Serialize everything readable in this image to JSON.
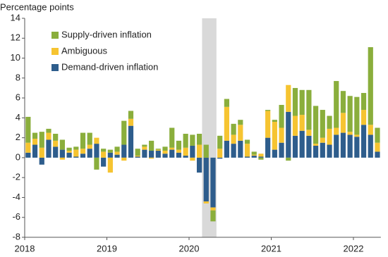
{
  "chart_data": {
    "type": "stacked_bar",
    "ylabel": "Percentage points",
    "categories": [
      "2018",
      null,
      null,
      null,
      null,
      null,
      null,
      null,
      null,
      null,
      null,
      null,
      "2019",
      null,
      null,
      null,
      null,
      null,
      null,
      null,
      null,
      null,
      null,
      null,
      "2020",
      null,
      null,
      null,
      null,
      null,
      null,
      null,
      null,
      null,
      null,
      null,
      "2021",
      null,
      null,
      null,
      null,
      null,
      null,
      null,
      null,
      null,
      null,
      null,
      "2022",
      null,
      null,
      null
    ],
    "series": [
      {
        "name": "Demand-driven inflation",
        "color": "#2e5d8c",
        "values": [
          0.5,
          1.3,
          -0.7,
          1.8,
          1.1,
          0.8,
          0.5,
          0.1,
          0.4,
          0.9,
          1.4,
          -0.9,
          0.5,
          0.3,
          1.3,
          3.2,
          0.1,
          0.8,
          0.7,
          0.7,
          0.4,
          0.8,
          0.5,
          0.2,
          1.2,
          -1.5,
          -4.4,
          -5.0,
          -0.1,
          1.7,
          1.4,
          1.7,
          0.1,
          0.2,
          0.1,
          2.0,
          0.8,
          1.5,
          4.6,
          2.2,
          2.7,
          2.2,
          1.2,
          1.5,
          1.3,
          2.3,
          2.5,
          2.3,
          2.1,
          3.3,
          2.3,
          0.6
        ]
      },
      {
        "name": "Ambiguous",
        "color": "#f6c431",
        "values": [
          1.0,
          0.6,
          1.0,
          0.7,
          0.6,
          -0.2,
          0.2,
          0.7,
          0.5,
          0.4,
          0.6,
          0.6,
          -1.5,
          0.3,
          -0.3,
          0.7,
          0.1,
          0.3,
          -0.1,
          0.1,
          0.3,
          0.2,
          0.3,
          0.8,
          -0.3,
          1.3,
          -0.2,
          -0.3,
          0.9,
          3.4,
          0.9,
          1.6,
          1.3,
          0.1,
          0.3,
          2.7,
          2.8,
          1.5,
          2.7,
          2.0,
          1.6,
          0.6,
          0.2,
          0.5,
          1.6,
          0.7,
          2.0,
          0.3,
          0.2,
          1.5,
          1.0,
          0.9
        ]
      },
      {
        "name": "Supply-driven inflation",
        "color": "#8aae3c",
        "values": [
          2.6,
          0.6,
          1.6,
          0.4,
          0.7,
          1.0,
          0.3,
          0.3,
          1.6,
          1.2,
          -1.2,
          0.3,
          0.3,
          0.5,
          2.4,
          0.8,
          0.7,
          0.2,
          1.0,
          0.1,
          0.4,
          2.0,
          0.9,
          1.4,
          1.1,
          1.1,
          1.3,
          -1.1,
          1.3,
          0.8,
          1.1,
          0.5,
          0.4,
          0.3,
          -0.2,
          0.1,
          0.2,
          2.3,
          -0.3,
          2.8,
          2.5,
          4.0,
          3.8,
          2.8,
          1.3,
          4.7,
          2.2,
          3.6,
          3.8,
          1.7,
          7.8,
          1.5
        ]
      }
    ],
    "ylim": [
      -8,
      14
    ],
    "yticks": [
      -8,
      -6,
      -4,
      -2,
      0,
      2,
      4,
      6,
      8,
      10,
      12,
      14
    ],
    "shaded_categories": [
      26,
      27
    ],
    "shade_color": "#d9d9d9",
    "legend": "upper left",
    "grid": false
  }
}
